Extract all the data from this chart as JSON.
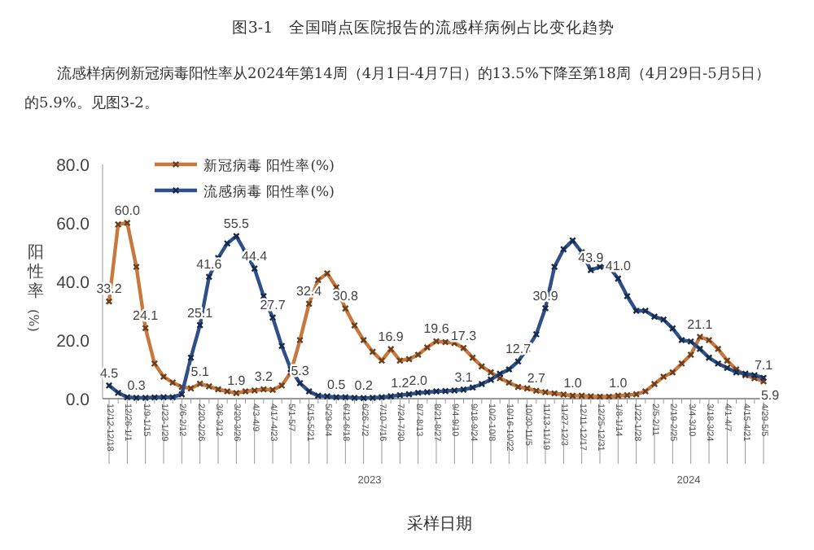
{
  "chart_data": {
    "type": "line",
    "title": "图3-1　全国哨点医院报告的流感样病例占比变化趋势",
    "subtitle": "流感样病例新冠病毒阳性率从2024年第14周（4月1日-4月7日）的13.5%下降至第18周（4月29日-5月5日）的5.9%。见图3-2。",
    "xlabel": "采样日期",
    "ylabel": "阳性率(%)",
    "categories": [
      "12/12-12/18",
      null,
      "12/26-1/1",
      null,
      "1/9-1/15",
      null,
      "1/23-1/29",
      null,
      "2/6-2/12",
      null,
      "2/20-2/26",
      null,
      "3/6-3/12",
      null,
      "3/20-3/26",
      null,
      "4/3-4/9",
      null,
      "4/17-4/23",
      null,
      "5/1-5/7",
      null,
      "5/15-5/21",
      null,
      "5/29-6/4",
      null,
      "6/12-6/18",
      null,
      "6/26-7/2",
      null,
      "7/10-7/16",
      null,
      "7/24-7/30",
      null,
      "8/7-8/13",
      null,
      "8/21-8/27",
      null,
      "9/4-9/10",
      null,
      "9/18-9/24",
      null,
      "10/2-10/8",
      null,
      "10/16-10/22",
      null,
      "10/30-11/5",
      null,
      "11/13-11/19",
      null,
      "11/27-12/3",
      null,
      "12/11-12/17",
      null,
      "12/25-12/31",
      null,
      "1/8-1/14",
      null,
      "1/22-1/28",
      null,
      "2/5-2/11",
      null,
      "2/19-2/25",
      null,
      "3/4-3/10",
      null,
      "3/18-3/24",
      null,
      "4/1-4/7",
      null,
      "4/15-4/21",
      null,
      "4/29-5/5"
    ],
    "series": [
      {
        "name": "新冠病毒 阳性率(%)",
        "color": "#c8783c",
        "values": [
          33.2,
          59.5,
          60.0,
          45,
          24.1,
          12,
          7.5,
          5.5,
          4,
          3.5,
          5.1,
          4.2,
          3.2,
          2.5,
          1.9,
          2.5,
          2.8,
          3.2,
          3.0,
          4.5,
          9,
          20,
          32.4,
          40.5,
          42.8,
          38,
          30.8,
          25,
          20,
          16,
          13,
          16.9,
          13,
          13.5,
          15,
          17.5,
          19.6,
          19.3,
          19,
          17.3,
          14,
          11,
          9,
          7,
          5.5,
          4,
          3.5,
          2.7,
          2.2,
          1.8,
          1.4,
          1.0,
          1.0,
          0.8,
          0.7,
          0.7,
          1.0,
          1.2,
          1.5,
          2.5,
          5,
          7.5,
          9,
          12,
          15,
          21.1,
          20,
          17,
          13,
          10,
          8,
          7,
          5.9
        ],
        "value_labels": [
          "33.2",
          null,
          "60.0",
          null,
          "24.1",
          null,
          null,
          null,
          null,
          null,
          "5.1",
          null,
          null,
          null,
          "1.9",
          null,
          null,
          "3.2",
          null,
          null,
          null,
          null,
          "32.4",
          null,
          null,
          null,
          "30.8",
          null,
          null,
          null,
          null,
          "16.9",
          null,
          null,
          null,
          null,
          "19.6",
          null,
          null,
          "17.3",
          null,
          null,
          null,
          null,
          null,
          null,
          null,
          "2.7",
          null,
          null,
          null,
          "1.0",
          null,
          null,
          null,
          null,
          "1.0",
          null,
          null,
          null,
          null,
          null,
          null,
          null,
          null,
          "21.1",
          null,
          null,
          null,
          null,
          null,
          null,
          "5.9"
        ]
      },
      {
        "name": "流感病毒 阳性率(%)",
        "color": "#2e4f8a",
        "values": [
          4.5,
          2,
          0.5,
          0.3,
          0.3,
          0.4,
          0.5,
          0.5,
          1.5,
          14,
          25.1,
          41.6,
          48,
          53,
          55.5,
          50,
          44.4,
          35,
          27.7,
          18,
          10,
          5.3,
          2.5,
          1,
          0.8,
          0.5,
          0.5,
          0.3,
          0.2,
          0.3,
          0.5,
          0.8,
          1.2,
          1.5,
          2.0,
          2.2,
          2.5,
          2.6,
          2.8,
          3.1,
          3.8,
          5,
          6.5,
          8.5,
          10,
          12.7,
          17,
          22,
          30.9,
          45,
          51,
          54,
          50,
          43.9,
          45,
          45,
          41.0,
          35,
          30,
          30,
          28,
          27,
          24,
          20,
          19.5,
          17,
          14,
          12,
          10.5,
          9,
          8.5,
          8,
          7.1
        ],
        "value_labels": [
          "4.5",
          null,
          null,
          "0.3",
          null,
          null,
          null,
          null,
          null,
          null,
          "25.1",
          "41.6",
          null,
          null,
          "55.5",
          null,
          "44.4",
          null,
          "27.7",
          null,
          null,
          "5.3",
          null,
          null,
          null,
          "0.5",
          null,
          null,
          "0.2",
          null,
          null,
          null,
          "1.2",
          null,
          "2.0",
          null,
          null,
          null,
          null,
          "3.1",
          null,
          null,
          null,
          null,
          null,
          "12.7",
          null,
          null,
          "30.9",
          null,
          null,
          null,
          null,
          "43.9",
          null,
          null,
          "41.0",
          null,
          null,
          null,
          null,
          null,
          null,
          null,
          null,
          null,
          null,
          null,
          null,
          null,
          null,
          null,
          "7.1"
        ]
      }
    ],
    "ylim": [
      0,
      80
    ],
    "yticks": [
      {
        "value": 0,
        "label": "0.0"
      },
      {
        "value": 20,
        "label": "20.0"
      },
      {
        "value": 40,
        "label": "40.0"
      },
      {
        "value": 60,
        "label": "60.0"
      },
      {
        "value": 80,
        "label": "80.0"
      }
    ],
    "annotations": [
      "2023",
      "2024"
    ],
    "legend": "top left",
    "marker": "cross",
    "grid": false,
    "line_style": "solid"
  }
}
